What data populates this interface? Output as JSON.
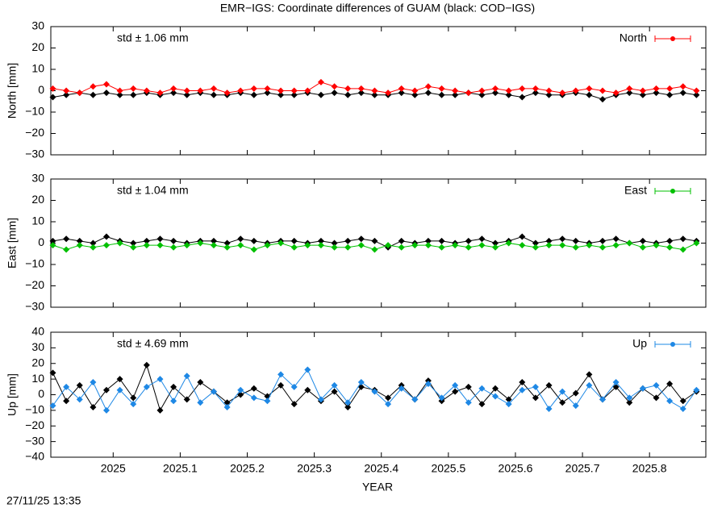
{
  "chart_data": [
    {
      "type": "line",
      "title": "EMR−IGS: Coordinate differences of GUAM (black: COD−IGS)",
      "ylabel": "North [mm]",
      "annotation": "std ± 1.06 mm",
      "xlim": [
        2024.907,
        2025.884
      ],
      "xticks": [
        2025,
        2025.1,
        2025.2,
        2025.3,
        2025.4,
        2025.5,
        2025.6,
        2025.7,
        2025.8
      ],
      "ylim": [
        -30,
        30
      ],
      "yticks": [
        {
          "value": -30,
          "label": "−30"
        },
        {
          "value": -20,
          "label": "−20"
        },
        {
          "value": -10,
          "label": "−10"
        },
        0,
        10,
        20,
        30
      ],
      "x": [
        2024.91,
        2024.93,
        2024.95,
        2024.97,
        2024.99,
        2025.01,
        2025.03,
        2025.05,
        2025.07,
        2025.09,
        2025.11,
        2025.13,
        2025.15,
        2025.17,
        2025.19,
        2025.21,
        2025.23,
        2025.25,
        2025.27,
        2025.29,
        2025.31,
        2025.33,
        2025.35,
        2025.37,
        2025.39,
        2025.41,
        2025.43,
        2025.45,
        2025.47,
        2025.49,
        2025.51,
        2025.53,
        2025.55,
        2025.57,
        2025.59,
        2025.61,
        2025.63,
        2025.65,
        2025.67,
        2025.69,
        2025.71,
        2025.73,
        2025.75,
        2025.77,
        2025.79,
        2025.81,
        2025.83,
        2025.85,
        2025.87
      ],
      "series": [
        {
          "color": "#000000",
          "values": [
            -3,
            -2,
            -1,
            -2,
            -1,
            -2,
            -2,
            -1,
            -2,
            -1,
            -2,
            -1,
            -2,
            -2,
            -1,
            -2,
            -1,
            -2,
            -2,
            -1,
            -2,
            -1,
            -2,
            -1,
            -2,
            -2,
            -1,
            -2,
            -1,
            -2,
            -2,
            -1,
            -2,
            -1,
            -2,
            -3,
            -1,
            -2,
            -2,
            -1,
            -2,
            -4,
            -2,
            -1,
            -2,
            -1,
            -2,
            -1,
            -2
          ]
        },
        {
          "name": "North",
          "color": "#ff0000",
          "values": [
            1,
            0,
            -1,
            2,
            3,
            0,
            1,
            0,
            -1,
            1,
            0,
            0,
            1,
            -1,
            0,
            1,
            1,
            0,
            0,
            0,
            4,
            2,
            1,
            1,
            0,
            -1,
            1,
            0,
            2,
            1,
            0,
            -1,
            0,
            1,
            0,
            1,
            1,
            0,
            -1,
            0,
            1,
            0,
            -1,
            1,
            0,
            1,
            1,
            2,
            0
          ]
        }
      ]
    },
    {
      "type": "line",
      "ylabel": "East [mm]",
      "annotation": "std ± 1.04 mm",
      "xlim": [
        2024.907,
        2025.884
      ],
      "xticks": [
        2025,
        2025.1,
        2025.2,
        2025.3,
        2025.4,
        2025.5,
        2025.6,
        2025.7,
        2025.8
      ],
      "ylim": [
        -30,
        30
      ],
      "yticks": [
        {
          "value": -30,
          "label": "−30"
        },
        {
          "value": -20,
          "label": "−20"
        },
        {
          "value": -10,
          "label": "−10"
        },
        0,
        10,
        20,
        30
      ],
      "x": [
        2024.91,
        2024.93,
        2024.95,
        2024.97,
        2024.99,
        2025.01,
        2025.03,
        2025.05,
        2025.07,
        2025.09,
        2025.11,
        2025.13,
        2025.15,
        2025.17,
        2025.19,
        2025.21,
        2025.23,
        2025.25,
        2025.27,
        2025.29,
        2025.31,
        2025.33,
        2025.35,
        2025.37,
        2025.39,
        2025.41,
        2025.43,
        2025.45,
        2025.47,
        2025.49,
        2025.51,
        2025.53,
        2025.55,
        2025.57,
        2025.59,
        2025.61,
        2025.63,
        2025.65,
        2025.67,
        2025.69,
        2025.71,
        2025.73,
        2025.75,
        2025.77,
        2025.79,
        2025.81,
        2025.83,
        2025.85,
        2025.87
      ],
      "series": [
        {
          "color": "#000000",
          "values": [
            1,
            2,
            1,
            0,
            3,
            1,
            0,
            1,
            2,
            1,
            0,
            1,
            1,
            0,
            2,
            1,
            0,
            1,
            1,
            0,
            1,
            0,
            1,
            2,
            1,
            -2,
            1,
            0,
            1,
            1,
            0,
            1,
            2,
            0,
            1,
            3,
            0,
            1,
            2,
            1,
            0,
            1,
            2,
            0,
            1,
            0,
            1,
            2,
            1
          ]
        },
        {
          "name": "East",
          "color": "#00c000",
          "values": [
            -1,
            -3,
            -1,
            -2,
            -1,
            0,
            -2,
            -1,
            -1,
            -2,
            -1,
            0,
            -1,
            -2,
            -1,
            -3,
            -1,
            0,
            -2,
            -1,
            -1,
            -2,
            -2,
            -1,
            -3,
            -1,
            -2,
            -1,
            -1,
            -2,
            -1,
            -2,
            -1,
            -2,
            0,
            -1,
            -2,
            -1,
            -1,
            -2,
            -1,
            -2,
            -1,
            0,
            -2,
            -1,
            -2,
            -3,
            0
          ]
        }
      ]
    },
    {
      "type": "line",
      "ylabel": "Up [mm]",
      "annotation": "std ± 4.69 mm",
      "xlabel": "YEAR",
      "footer": "27/11/25 13:35",
      "xlim": [
        2024.907,
        2025.884
      ],
      "xticks": [
        2025,
        2025.1,
        2025.2,
        2025.3,
        2025.4,
        2025.5,
        2025.6,
        2025.7,
        2025.8
      ],
      "ylim": [
        -40,
        40
      ],
      "yticks": [
        {
          "value": -40,
          "label": "−40"
        },
        {
          "value": -30,
          "label": "−30"
        },
        {
          "value": -20,
          "label": "−20"
        },
        {
          "value": -10,
          "label": "−10"
        },
        0,
        10,
        20,
        30,
        40
      ],
      "x": [
        2024.91,
        2024.93,
        2024.95,
        2024.97,
        2024.99,
        2025.01,
        2025.03,
        2025.05,
        2025.07,
        2025.09,
        2025.11,
        2025.13,
        2025.15,
        2025.17,
        2025.19,
        2025.21,
        2025.23,
        2025.25,
        2025.27,
        2025.29,
        2025.31,
        2025.33,
        2025.35,
        2025.37,
        2025.39,
        2025.41,
        2025.43,
        2025.45,
        2025.47,
        2025.49,
        2025.51,
        2025.53,
        2025.55,
        2025.57,
        2025.59,
        2025.61,
        2025.63,
        2025.65,
        2025.67,
        2025.69,
        2025.71,
        2025.73,
        2025.75,
        2025.77,
        2025.79,
        2025.81,
        2025.83,
        2025.85,
        2025.87
      ],
      "series": [
        {
          "color": "#000000",
          "values": [
            14,
            -4,
            6,
            -8,
            3,
            10,
            -2,
            19,
            -10,
            5,
            -3,
            8,
            2,
            -5,
            0,
            4,
            -1,
            6,
            -6,
            3,
            -4,
            2,
            -8,
            5,
            3,
            -2,
            6,
            -3,
            9,
            -4,
            2,
            5,
            -6,
            4,
            -3,
            8,
            -2,
            6,
            -5,
            1,
            13,
            -3,
            5,
            -5,
            4,
            -2,
            7,
            -4,
            2
          ]
        },
        {
          "name": "Up",
          "color": "#1e88e5",
          "values": [
            -7,
            5,
            -3,
            8,
            -10,
            3,
            -6,
            5,
            10,
            -4,
            12,
            -5,
            2,
            -8,
            3,
            -2,
            -4,
            13,
            5,
            16,
            -3,
            6,
            -5,
            8,
            2,
            -6,
            4,
            -3,
            7,
            -2,
            6,
            -5,
            4,
            -1,
            -6,
            3,
            5,
            -9,
            2,
            -7,
            6,
            -3,
            8,
            -2,
            4,
            6,
            -4,
            -9,
            3
          ]
        }
      ]
    }
  ]
}
